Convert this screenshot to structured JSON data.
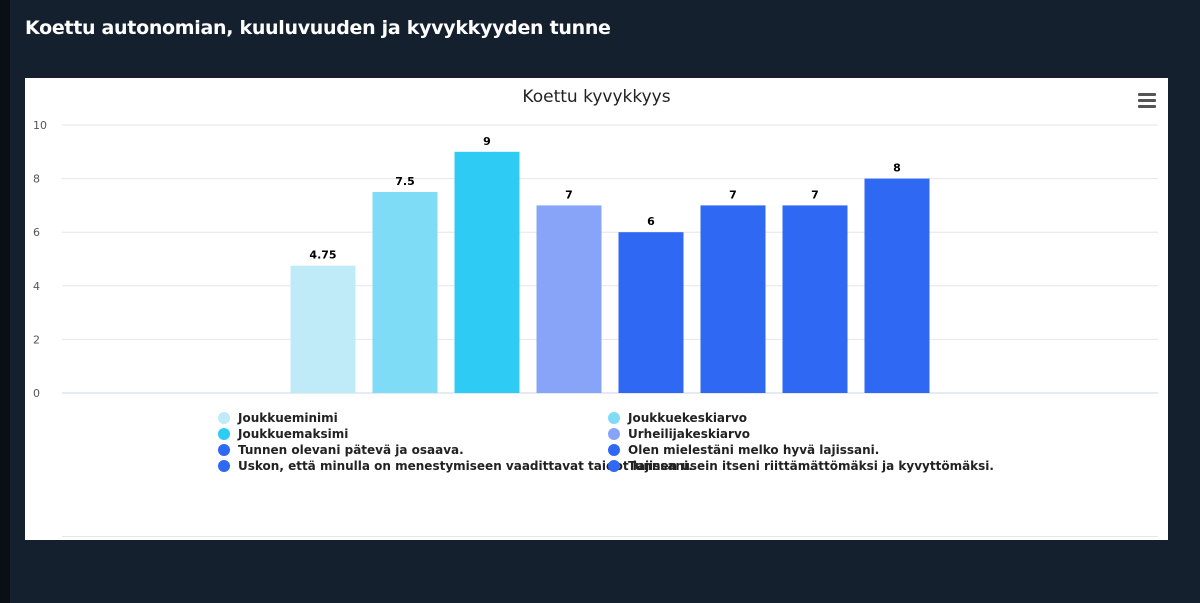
{
  "page_title": "Koettu autonomian, kuuluvuuden ja kyvykkyyden tunne",
  "chart_menu_icon": "hamburger-menu-icon",
  "chart_data": {
    "type": "bar",
    "title": "Koettu kyvykkyys",
    "xlabel": "",
    "ylabel": "",
    "ylim": [
      0,
      10
    ],
    "yticks": [
      "0",
      "2",
      "4",
      "6",
      "8",
      "10"
    ],
    "grid": true,
    "legend_placement": "bottom",
    "series": [
      {
        "name": "Joukkueminimi",
        "value": 4.75,
        "label": "4.75",
        "color": "#bfeaf8"
      },
      {
        "name": "Joukkuekeskiarvo",
        "value": 7.5,
        "label": "7.5",
        "color": "#7fdcf6"
      },
      {
        "name": "Joukkuemaksimi",
        "value": 9,
        "label": "9",
        "color": "#2ecbf4"
      },
      {
        "name": "Urheilijakeskiarvo",
        "value": 7,
        "label": "7",
        "color": "#87a4f8"
      },
      {
        "name": "Tunnen olevani pätevä ja osaava.",
        "value": 6,
        "label": "6",
        "color": "#2f68f3"
      },
      {
        "name": "Olen mielestäni melko hyvä lajissani.",
        "value": 7,
        "label": "7",
        "color": "#2f68f3"
      },
      {
        "name": "Uskon, että minulla on menestymiseen vaadittavat taidot lajissani.",
        "value": 7,
        "label": "7",
        "color": "#2f68f3"
      },
      {
        "name": "Tunnen usein itseni riittämättömäksi ja kyvyttömäksi.",
        "value": 8,
        "label": "8",
        "color": "#2f68f3"
      }
    ]
  }
}
